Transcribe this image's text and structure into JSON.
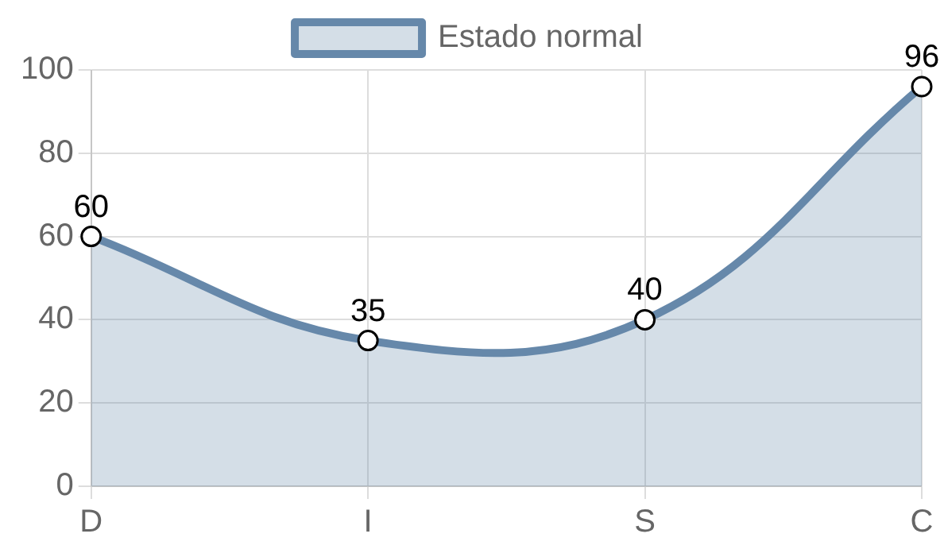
{
  "chart_data": {
    "type": "area",
    "categories": [
      "D",
      "I",
      "S",
      "C"
    ],
    "series": [
      {
        "name": "Estado normal",
        "color": "#6688aa",
        "values": [
          60,
          35,
          40,
          96
        ]
      }
    ],
    "ylim": [
      0,
      100
    ],
    "yticks": [
      0,
      20,
      40,
      60,
      80,
      100
    ],
    "grid": true,
    "legend": "top",
    "marker": "circle",
    "line_style": "solid",
    "data_labels": true
  }
}
